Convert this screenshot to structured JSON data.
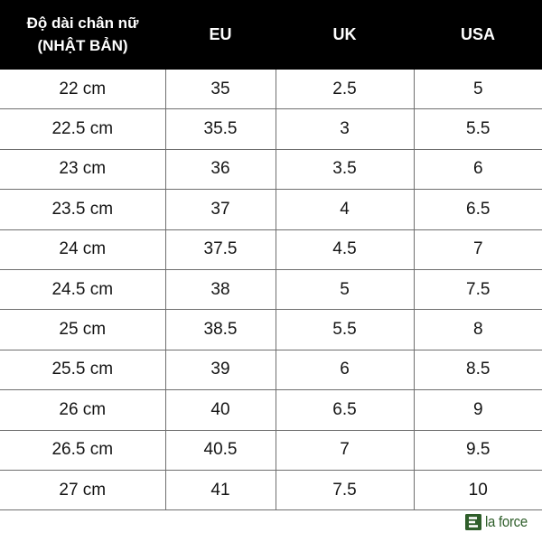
{
  "table": {
    "headers": {
      "jp_line1": "Độ dài chân nữ",
      "jp_line2": "(NHẬT BẢN)",
      "eu": "EU",
      "uk": "UK",
      "usa": "USA"
    },
    "rows": [
      {
        "jp": "22 cm",
        "eu": "35",
        "uk": "2.5",
        "usa": "5"
      },
      {
        "jp": "22.5 cm",
        "eu": "35.5",
        "uk": "3",
        "usa": "5.5"
      },
      {
        "jp": "23 cm",
        "eu": "36",
        "uk": "3.5",
        "usa": "6"
      },
      {
        "jp": "23.5 cm",
        "eu": "37",
        "uk": "4",
        "usa": "6.5"
      },
      {
        "jp": "24 cm",
        "eu": "37.5",
        "uk": "4.5",
        "usa": "7"
      },
      {
        "jp": "24.5 cm",
        "eu": "38",
        "uk": "5",
        "usa": "7.5"
      },
      {
        "jp": "25 cm",
        "eu": "38.5",
        "uk": "5.5",
        "usa": "8"
      },
      {
        "jp": "25.5 cm",
        "eu": "39",
        "uk": "6",
        "usa": "8.5"
      },
      {
        "jp": "26 cm",
        "eu": "40",
        "uk": "6.5",
        "usa": "9"
      },
      {
        "jp": "26.5 cm",
        "eu": "40.5",
        "uk": "7",
        "usa": "9.5"
      },
      {
        "jp": "27 cm",
        "eu": "41",
        "uk": "7.5",
        "usa": "10"
      }
    ]
  },
  "brand": {
    "name": "la force",
    "icon": "la-force-logo-icon",
    "color": "#2f5e2a"
  },
  "colors": {
    "header_bg": "#000000",
    "header_text": "#ffffff",
    "grid_line": "#6f6f6f"
  }
}
